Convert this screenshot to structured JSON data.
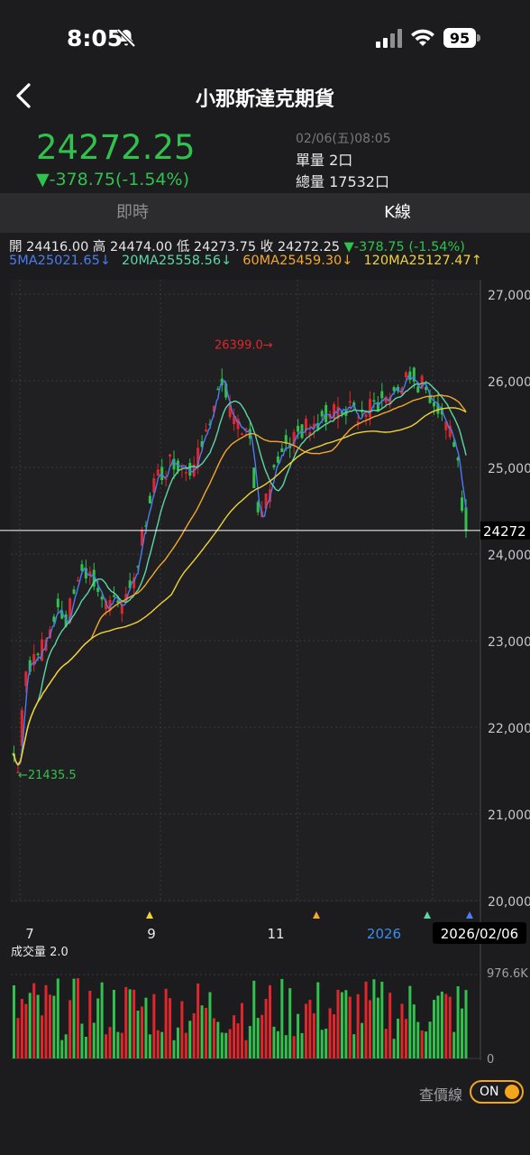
{
  "status_bar": {
    "time": "8:05",
    "battery": "95"
  },
  "header": {
    "title": "小那斯達克期貨"
  },
  "quote": {
    "price": "24272.25",
    "change": "▼-378.75(-1.54%)",
    "datetime": "02/06(五)08:05",
    "unit_volume": "單量 2口",
    "total_volume": "總量 17532口"
  },
  "tabs": [
    {
      "label": "即時"
    },
    {
      "label": "K線"
    }
  ],
  "ohlc": {
    "open": "開 24416.00",
    "high": "高 24474.00",
    "low": "低 24273.75",
    "close": "收 24272.25",
    "change": "▼-378.75 (-1.54%)"
  },
  "ma": {
    "ma5": "5MA25021.65↓",
    "ma20": "20MA25558.56↓",
    "ma60": "60MA25459.30↓",
    "ma120": "120MA25127.47↑"
  },
  "colors": {
    "up": "#e1262c",
    "down": "#31c24d",
    "ma5": "#4b7cf0",
    "ma20": "#5ed6a6",
    "ma60": "#f2a82e",
    "ma120": "#efd23b",
    "high_marker": "#e1262c",
    "low_marker": "#31c24d",
    "toggle": "#f4a51c"
  },
  "chart_data": {
    "type": "candlestick",
    "y_ticks": [
      "27,000",
      "26,000",
      "25,000",
      "24,000",
      "23,000",
      "22,000",
      "21,000",
      "20,000"
    ],
    "ylim": [
      20000,
      27000
    ],
    "x_ticks": [
      {
        "label": "7",
        "highlight": false
      },
      {
        "label": "9",
        "highlight": false
      },
      {
        "label": "11",
        "highlight": false
      },
      {
        "label": "2026",
        "highlight": true
      }
    ],
    "current_price_label": "24272",
    "current_price": 24272.25,
    "high_marker": {
      "label": "26399.0→",
      "value": 26399
    },
    "low_marker": {
      "label": "←21435.5",
      "value": 21435.5
    },
    "date_label": "2026/02/06",
    "grid": true,
    "series": [
      {
        "name": "5MA",
        "color": "#4b7cf0"
      },
      {
        "name": "20MA",
        "color": "#5ed6a6"
      },
      {
        "name": "60MA",
        "color": "#f2a82e"
      },
      {
        "name": "120MA",
        "color": "#efd23b"
      }
    ],
    "volume": {
      "label": "成交量 2.0",
      "max_label": "976.6K",
      "min_label": "0"
    }
  },
  "toggle": {
    "label": "查價線",
    "state": "ON"
  }
}
